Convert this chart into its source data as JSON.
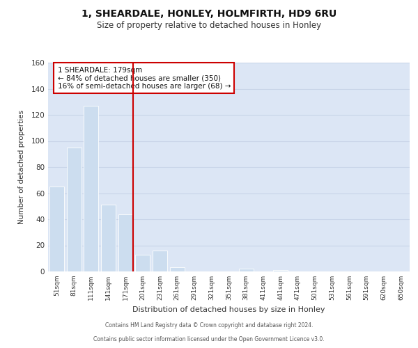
{
  "title": "1, SHEARDALE, HONLEY, HOLMFIRTH, HD9 6RU",
  "subtitle": "Size of property relative to detached houses in Honley",
  "xlabel": "Distribution of detached houses by size in Honley",
  "ylabel": "Number of detached properties",
  "bar_labels": [
    "51sqm",
    "81sqm",
    "111sqm",
    "141sqm",
    "171sqm",
    "201sqm",
    "231sqm",
    "261sqm",
    "291sqm",
    "321sqm",
    "351sqm",
    "381sqm",
    "411sqm",
    "441sqm",
    "471sqm",
    "501sqm",
    "531sqm",
    "561sqm",
    "591sqm",
    "620sqm",
    "650sqm"
  ],
  "bar_values": [
    65,
    95,
    127,
    51,
    44,
    13,
    16,
    3,
    0,
    0,
    0,
    2,
    0,
    1,
    0,
    0,
    0,
    0,
    0,
    0,
    0
  ],
  "bar_color": "#ccddef",
  "grid_color": "#c8d4e8",
  "background_color": "#dce6f5",
  "property_line_color": "#cc0000",
  "annotation_text": "1 SHEARDALE: 179sqm\n← 84% of detached houses are smaller (350)\n16% of semi-detached houses are larger (68) →",
  "annotation_box_color": "#ffffff",
  "annotation_box_edge": "#cc0000",
  "ylim": [
    0,
    160
  ],
  "yticks": [
    0,
    20,
    40,
    60,
    80,
    100,
    120,
    140,
    160
  ],
  "footer_line1": "Contains HM Land Registry data © Crown copyright and database right 2024.",
  "footer_line2": "Contains public sector information licensed under the Open Government Licence v3.0."
}
